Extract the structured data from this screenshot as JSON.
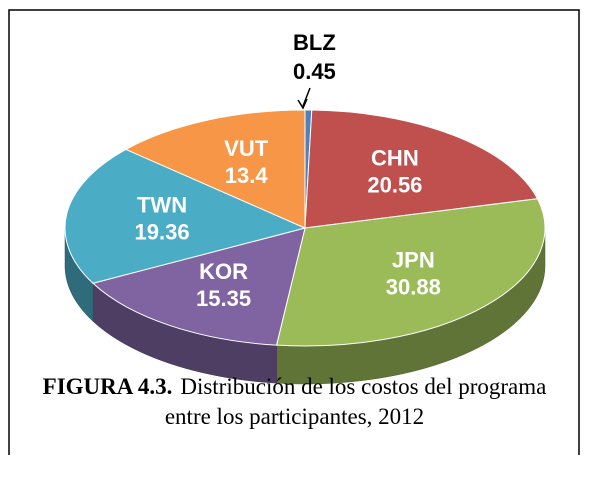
{
  "chart_data": {
    "type": "pie3d",
    "title": "FIGURA 4.3.",
    "subtitle": "Distribución de los costos del programa entre los participantes, 2012",
    "categories": [
      "BLZ",
      "CHN",
      "JPN",
      "KOR",
      "TWN",
      "VUT"
    ],
    "values": [
      0.45,
      20.56,
      30.88,
      15.35,
      19.36,
      13.4
    ],
    "colors": [
      "#4f81bd",
      "#c0504d",
      "#9bbb59",
      "#8064a2",
      "#4bacc6",
      "#f79646"
    ]
  }
}
